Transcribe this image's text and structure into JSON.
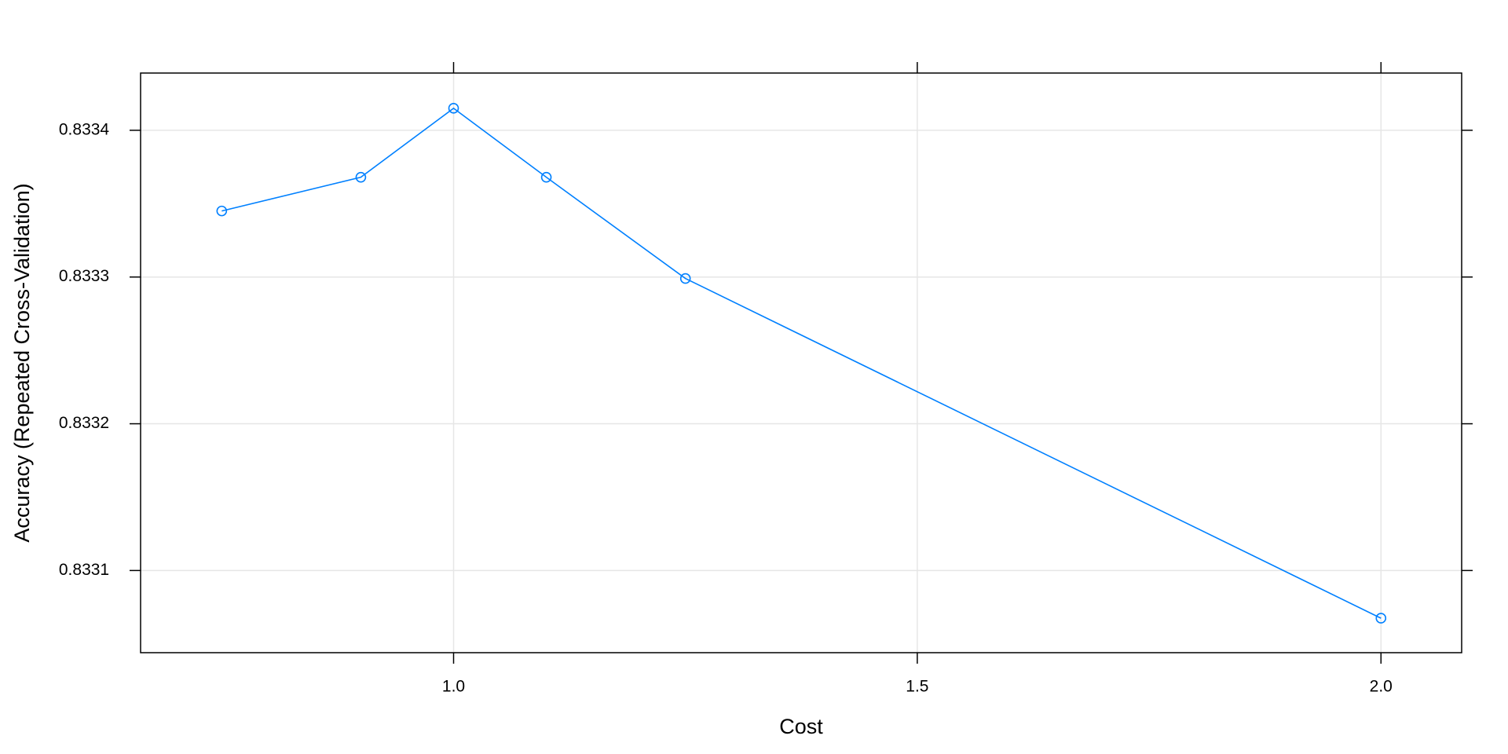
{
  "chart_data": {
    "type": "line",
    "xlabel": "Cost",
    "ylabel": "Accuracy (Repeated Cross-Validation)",
    "x": [
      0.75,
      0.9,
      1.0,
      1.1,
      1.25,
      2.0
    ],
    "series": [
      {
        "color": "#0080ff",
        "values": [
          0.833345,
          0.833368,
          0.833415,
          0.833368,
          0.833299,
          0.8330675
        ]
      }
    ],
    "xlim": [
      0.6625,
      2.087
    ],
    "ylim": [
      0.833044,
      0.833439
    ],
    "xticks": [
      {
        "value": 1.0,
        "label": "1.0"
      },
      {
        "value": 1.5,
        "label": "1.5"
      },
      {
        "value": 2.0,
        "label": "2.0"
      }
    ],
    "yticks": [
      0.8331,
      0.8332,
      0.8333,
      0.8334
    ],
    "grid": true
  }
}
